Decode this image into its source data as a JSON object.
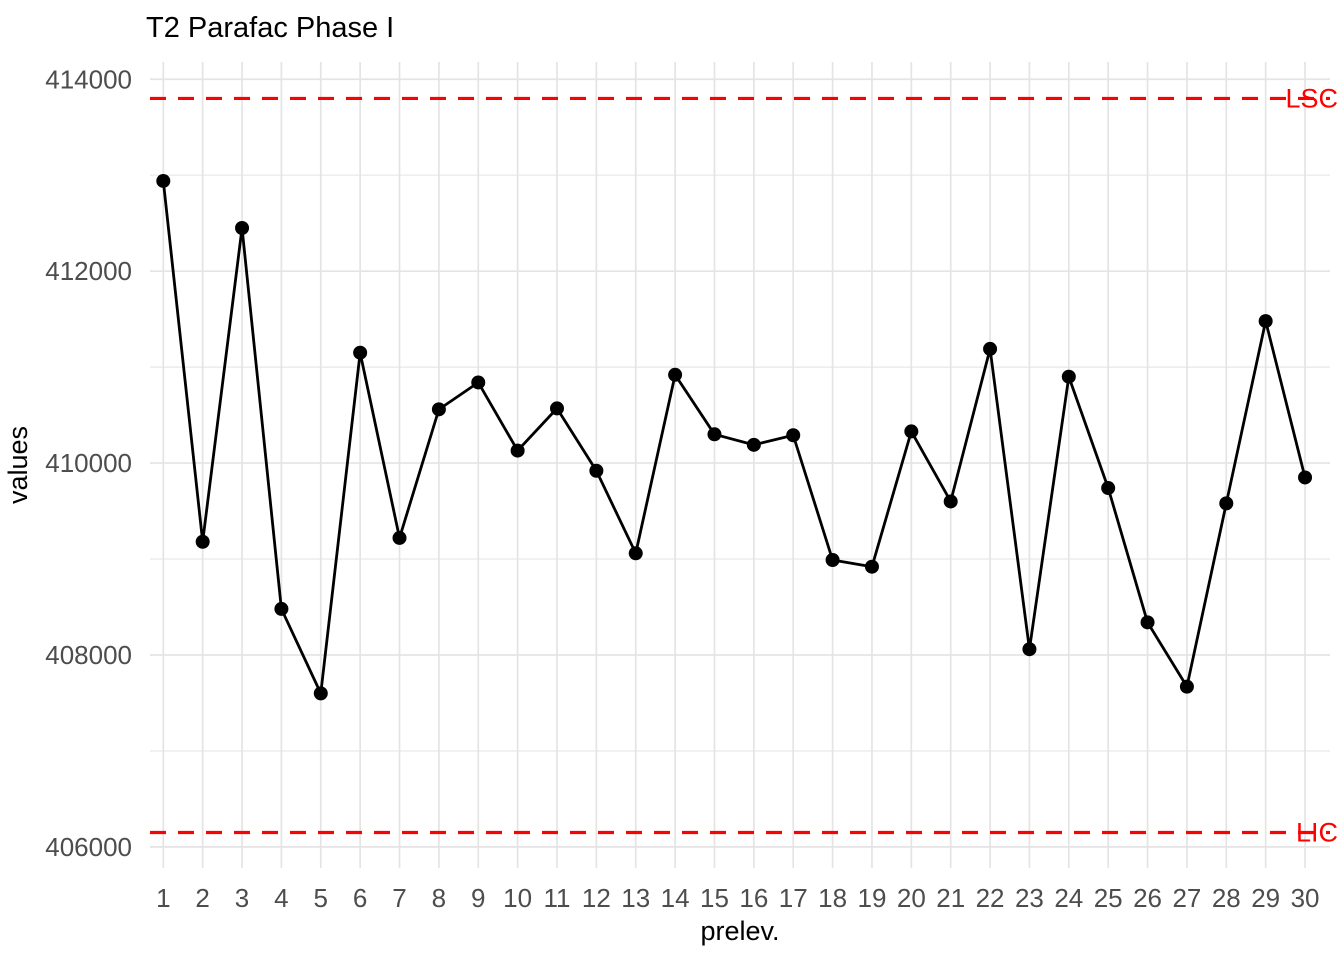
{
  "chart_data": {
    "type": "line",
    "title": "T2 Parafac Phase I",
    "xlabel": "prelev.",
    "ylabel": "values",
    "x": [
      1,
      2,
      3,
      4,
      5,
      6,
      7,
      8,
      9,
      10,
      11,
      12,
      13,
      14,
      15,
      16,
      17,
      18,
      19,
      20,
      21,
      22,
      23,
      24,
      25,
      26,
      27,
      28,
      29,
      30
    ],
    "values": [
      412940,
      409180,
      412450,
      408480,
      407600,
      411150,
      409220,
      410560,
      410840,
      410130,
      410570,
      409920,
      409060,
      410920,
      410300,
      410190,
      410290,
      408990,
      408920,
      410330,
      409600,
      411190,
      408060,
      410900,
      409740,
      408340,
      407670,
      409580,
      411480,
      409850
    ],
    "control_limits": {
      "upper": {
        "label": "LSC",
        "value": 413800
      },
      "lower": {
        "label": "LIC",
        "value": 406150
      }
    },
    "y_tick_values": [
      406000,
      408000,
      410000,
      412000,
      414000
    ],
    "y_tick_labels": [
      "406000",
      "408000",
      "410000",
      "412000",
      "414000"
    ],
    "y_minor_ticks": [
      407000,
      409000,
      411000,
      413000
    ],
    "x_tick_labels": [
      "1",
      "2",
      "3",
      "4",
      "5",
      "6",
      "7",
      "8",
      "9",
      "10",
      "11",
      "12",
      "13",
      "14",
      "15",
      "16",
      "17",
      "18",
      "19",
      "20",
      "21",
      "22",
      "23",
      "24",
      "25",
      "26",
      "27",
      "28",
      "29",
      "30"
    ],
    "ylim": [
      405780,
      414180
    ],
    "grid": true,
    "legend": "none",
    "colors": {
      "series": "#000000",
      "control": "#ff0000",
      "grid_major": "#e4e4e4",
      "grid_minor": "#ebebeb",
      "tick_text": "#4d4d4d",
      "title_text": "#000000"
    }
  }
}
